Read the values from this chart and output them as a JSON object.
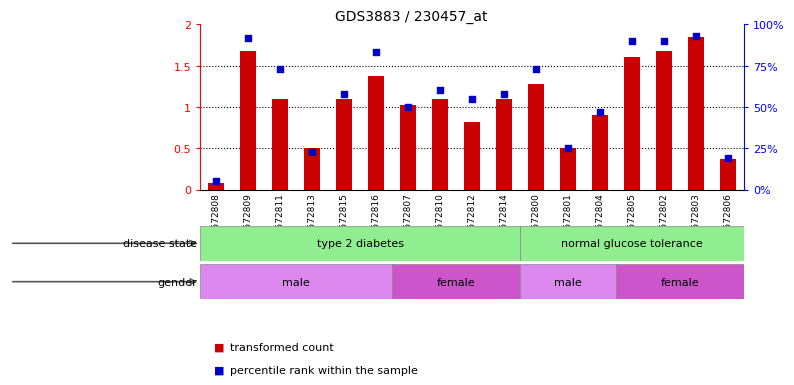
{
  "title": "GDS3883 / 230457_at",
  "samples": [
    "GSM572808",
    "GSM572809",
    "GSM572811",
    "GSM572813",
    "GSM572815",
    "GSM572816",
    "GSM572807",
    "GSM572810",
    "GSM572812",
    "GSM572814",
    "GSM572800",
    "GSM572801",
    "GSM572804",
    "GSM572805",
    "GSM572802",
    "GSM572803",
    "GSM572806"
  ],
  "transformed_count": [
    0.08,
    1.68,
    1.1,
    0.5,
    1.1,
    1.37,
    1.02,
    1.1,
    0.82,
    1.1,
    1.28,
    0.5,
    0.9,
    1.6,
    1.68,
    1.85,
    0.37
  ],
  "percentile_rank": [
    5,
    92,
    73,
    23,
    58,
    83,
    50,
    60,
    55,
    58,
    73,
    25,
    47,
    90,
    90,
    93,
    19
  ],
  "bar_color": "#cc0000",
  "dot_color": "#0000cc",
  "ylim_left": [
    0,
    2
  ],
  "ylim_right": [
    0,
    100
  ],
  "yticks_left": [
    0,
    0.5,
    1.0,
    1.5,
    2.0
  ],
  "ytick_labels_left": [
    "0",
    "0.5",
    "1",
    "1.5",
    "2"
  ],
  "yticks_right": [
    0,
    25,
    50,
    75,
    100
  ],
  "ytick_labels_right": [
    "0%",
    "25%",
    "50%",
    "75%",
    "100%"
  ],
  "gridlines": [
    0.5,
    1.0,
    1.5
  ],
  "disease_groups": [
    {
      "label": "type 2 diabetes",
      "start": 0,
      "end": 10,
      "color": "#90ee90"
    },
    {
      "label": "normal glucose tolerance",
      "start": 10,
      "end": 17,
      "color": "#90ee90"
    }
  ],
  "gender_groups": [
    {
      "label": "male",
      "start": 0,
      "end": 6,
      "color": "#dd88ee"
    },
    {
      "label": "female",
      "start": 6,
      "end": 10,
      "color": "#cc55cc"
    },
    {
      "label": "male",
      "start": 10,
      "end": 13,
      "color": "#dd88ee"
    },
    {
      "label": "female",
      "start": 13,
      "end": 17,
      "color": "#cc55cc"
    }
  ],
  "disease_label": "disease state",
  "gender_label": "gender",
  "legend_bar_label": "transformed count",
  "legend_dot_label": "percentile rank within the sample",
  "bar_width": 0.5,
  "dot_size": 18,
  "title_fontsize": 10,
  "axis_fontsize": 8,
  "band_fontsize": 8,
  "legend_fontsize": 8
}
